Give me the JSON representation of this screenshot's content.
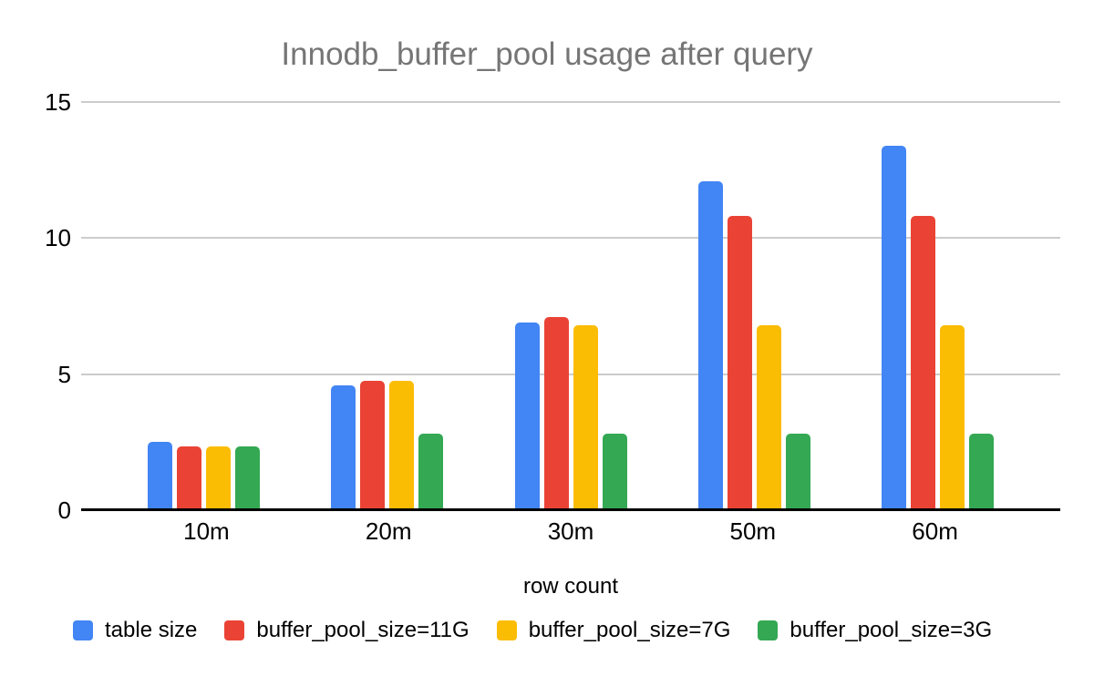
{
  "page": {
    "background_color": "#ffffff"
  },
  "chart": {
    "title_color": "#757575",
    "gridline_color": "#cccccc",
    "baseline_color": "#000000",
    "axis_text_color": "#000000"
  },
  "chart_data": {
    "type": "bar",
    "title": "Innodb_buffer_pool usage after query",
    "xlabel": "row count",
    "ylabel": "",
    "categories": [
      "10m",
      "20m",
      "30m",
      "50m",
      "60m"
    ],
    "series": [
      {
        "name": "table size",
        "color": "#4285f4",
        "values": [
          2.5,
          4.6,
          6.9,
          12.1,
          13.4
        ]
      },
      {
        "name": "buffer_pool_size=11G",
        "color": "#ea4335",
        "values": [
          2.35,
          4.75,
          7.1,
          10.8,
          10.8
        ]
      },
      {
        "name": "buffer_pool_size=7G",
        "color": "#fbbc04",
        "values": [
          2.35,
          4.75,
          6.8,
          6.8,
          6.8
        ]
      },
      {
        "name": "buffer_pool_size=3G",
        "color": "#34a853",
        "values": [
          2.35,
          2.8,
          2.8,
          2.8,
          2.8
        ]
      }
    ],
    "ylim": [
      0,
      15
    ],
    "yticks": [
      0,
      5,
      10,
      15
    ],
    "grid": true,
    "legend_position": "bottom"
  }
}
